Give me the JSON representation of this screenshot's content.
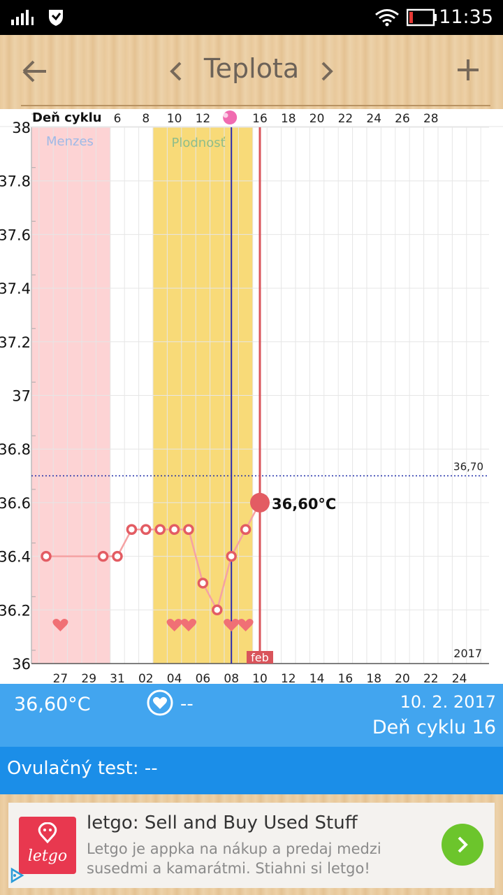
{
  "status_bar": {
    "time": "11:35"
  },
  "app_bar": {
    "title": "Teplota",
    "prev_label": "‹",
    "next_label": "›"
  },
  "chart_data": {
    "type": "line",
    "title": "",
    "top_axis_label": "Deň cyklu",
    "top_ticks": [
      "6",
      "8",
      "10",
      "12",
      "16",
      "18",
      "20",
      "22",
      "24",
      "26",
      "28"
    ],
    "bottom_ticks": [
      "27",
      "29",
      "31",
      "02",
      "04",
      "06",
      "08",
      "10",
      "12",
      "14",
      "16",
      "18",
      "20",
      "22",
      "24"
    ],
    "y_ticks": [
      "38",
      "37.8",
      "37.6",
      "37.4",
      "37.2",
      "37",
      "36.8",
      "36.6",
      "36.4",
      "36.2",
      "36"
    ],
    "ylim": [
      36,
      38
    ],
    "zones": [
      {
        "label": "Menzes",
        "color": "#fdd3d4"
      },
      {
        "label": "Plodnosť",
        "color": "#f8da78"
      }
    ],
    "series": [
      {
        "values": [
          {
            "x": 26,
            "y": 36.4
          },
          {
            "x": 30,
            "y": 36.4
          },
          {
            "x": 31,
            "y": 36.4
          },
          {
            "x": 32,
            "y": 36.5
          },
          {
            "x": 33,
            "y": 36.5
          },
          {
            "x": 34,
            "y": 36.5
          },
          {
            "x": 35,
            "y": 36.5
          },
          {
            "x": 36,
            "y": 36.5
          },
          {
            "x": 37,
            "y": 36.3
          },
          {
            "x": 38,
            "y": 36.2
          },
          {
            "x": 39,
            "y": 36.4
          },
          {
            "x": 40,
            "y": 36.5
          },
          {
            "x": 41,
            "y": 36.6
          }
        ]
      }
    ],
    "current_point": {
      "x": 41,
      "y": 36.6,
      "label": "36,60°C"
    },
    "reference_line": {
      "y": 36.7,
      "label": "36,70"
    },
    "hearts_x": [
      27,
      35,
      36,
      39,
      40
    ],
    "ovulation_x": 39,
    "today_x": 41,
    "month_label": "feb",
    "year_label": "2017",
    "colors": {
      "line": "#f5a2a3",
      "marker": "#e35c63",
      "today": "#d9545b",
      "ovulation": "#2a2ab0",
      "reference": "#1c2aa8",
      "grid": "#e6e6e6"
    }
  },
  "info": {
    "temperature": "36,60°C",
    "heart_value": "--",
    "date": "10. 2. 2017",
    "cycle_day": "Deň cyklu 16"
  },
  "ovulation_test": {
    "label": "Ovulačný test: --"
  },
  "ad": {
    "logo_text": "letgo",
    "title": "letgo: Sell and Buy Used Stuff",
    "description_line1": "Letgo je appka na nákup a predaj medzi",
    "description_line2": "susedmi a kamarátmi. Stiahni si letgo!",
    "colors": {
      "logo_bg": "#e8384f",
      "cta_bg": "#6cc52c"
    }
  }
}
